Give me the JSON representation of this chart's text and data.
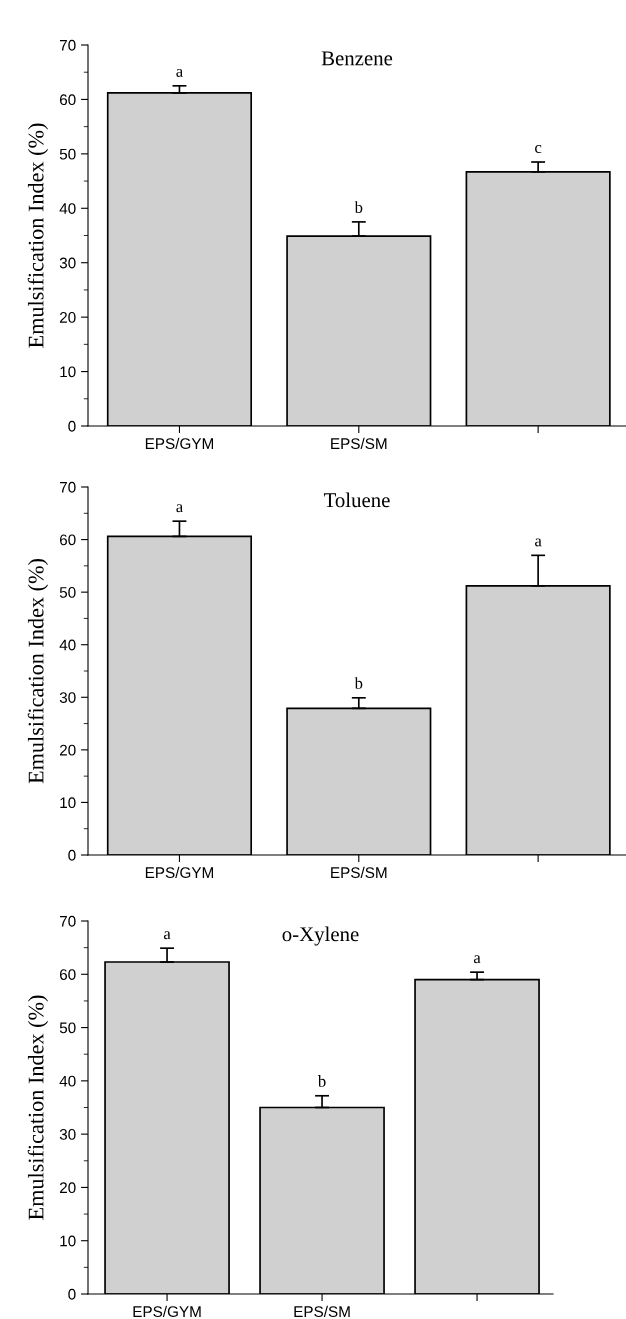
{
  "chart_data": [
    {
      "type": "bar",
      "title": "Benzene",
      "ylabel": "Emulsification Index (%)",
      "categories": [
        "EPS/GYM",
        "EPS/SM",
        null
      ],
      "values": [
        61.2,
        34.9,
        46.7
      ],
      "errors": [
        [
          61.2,
          62.5
        ],
        [
          34.9,
          37.5
        ],
        [
          46.7,
          48.5
        ]
      ],
      "color": "#d0d0d0",
      "ylim": [
        0,
        70
      ],
      "yticks": [
        0,
        10,
        20,
        30,
        40,
        50,
        60,
        70
      ],
      "annotations": [
        "a",
        "b",
        "c"
      ]
    },
    {
      "type": "bar",
      "title": "Toluene",
      "ylabel": "Emulsification Index (%)",
      "categories": [
        "EPS/GYM",
        "EPS/SM",
        null
      ],
      "values": [
        60.6,
        27.9,
        51.2
      ],
      "errors": [
        [
          60.6,
          63.5
        ],
        [
          27.9,
          29.9
        ],
        [
          51.2,
          57.0
        ]
      ],
      "color": "#d0d0d0",
      "ylim": [
        0,
        70
      ],
      "yticks": [
        0,
        10,
        20,
        30,
        40,
        50,
        60,
        70
      ],
      "annotations": [
        "a",
        "b",
        "a"
      ]
    },
    {
      "type": "bar",
      "title": "o-Xylene",
      "ylabel": "Emulsification Index (%)",
      "categories": [
        "EPS/GYM",
        "EPS/SM",
        null
      ],
      "values": [
        62.3,
        35.0,
        59.0
      ],
      "errors": [
        [
          62.3,
          64.9
        ],
        [
          35.0,
          37.2
        ],
        [
          59.0,
          60.4
        ]
      ],
      "color": "#d0d0d0",
      "ylim": [
        0,
        70
      ],
      "yticks": [
        0,
        10,
        20,
        30,
        40,
        50,
        60,
        70
      ],
      "annotations": [
        "a",
        "b",
        "a"
      ]
    }
  ]
}
